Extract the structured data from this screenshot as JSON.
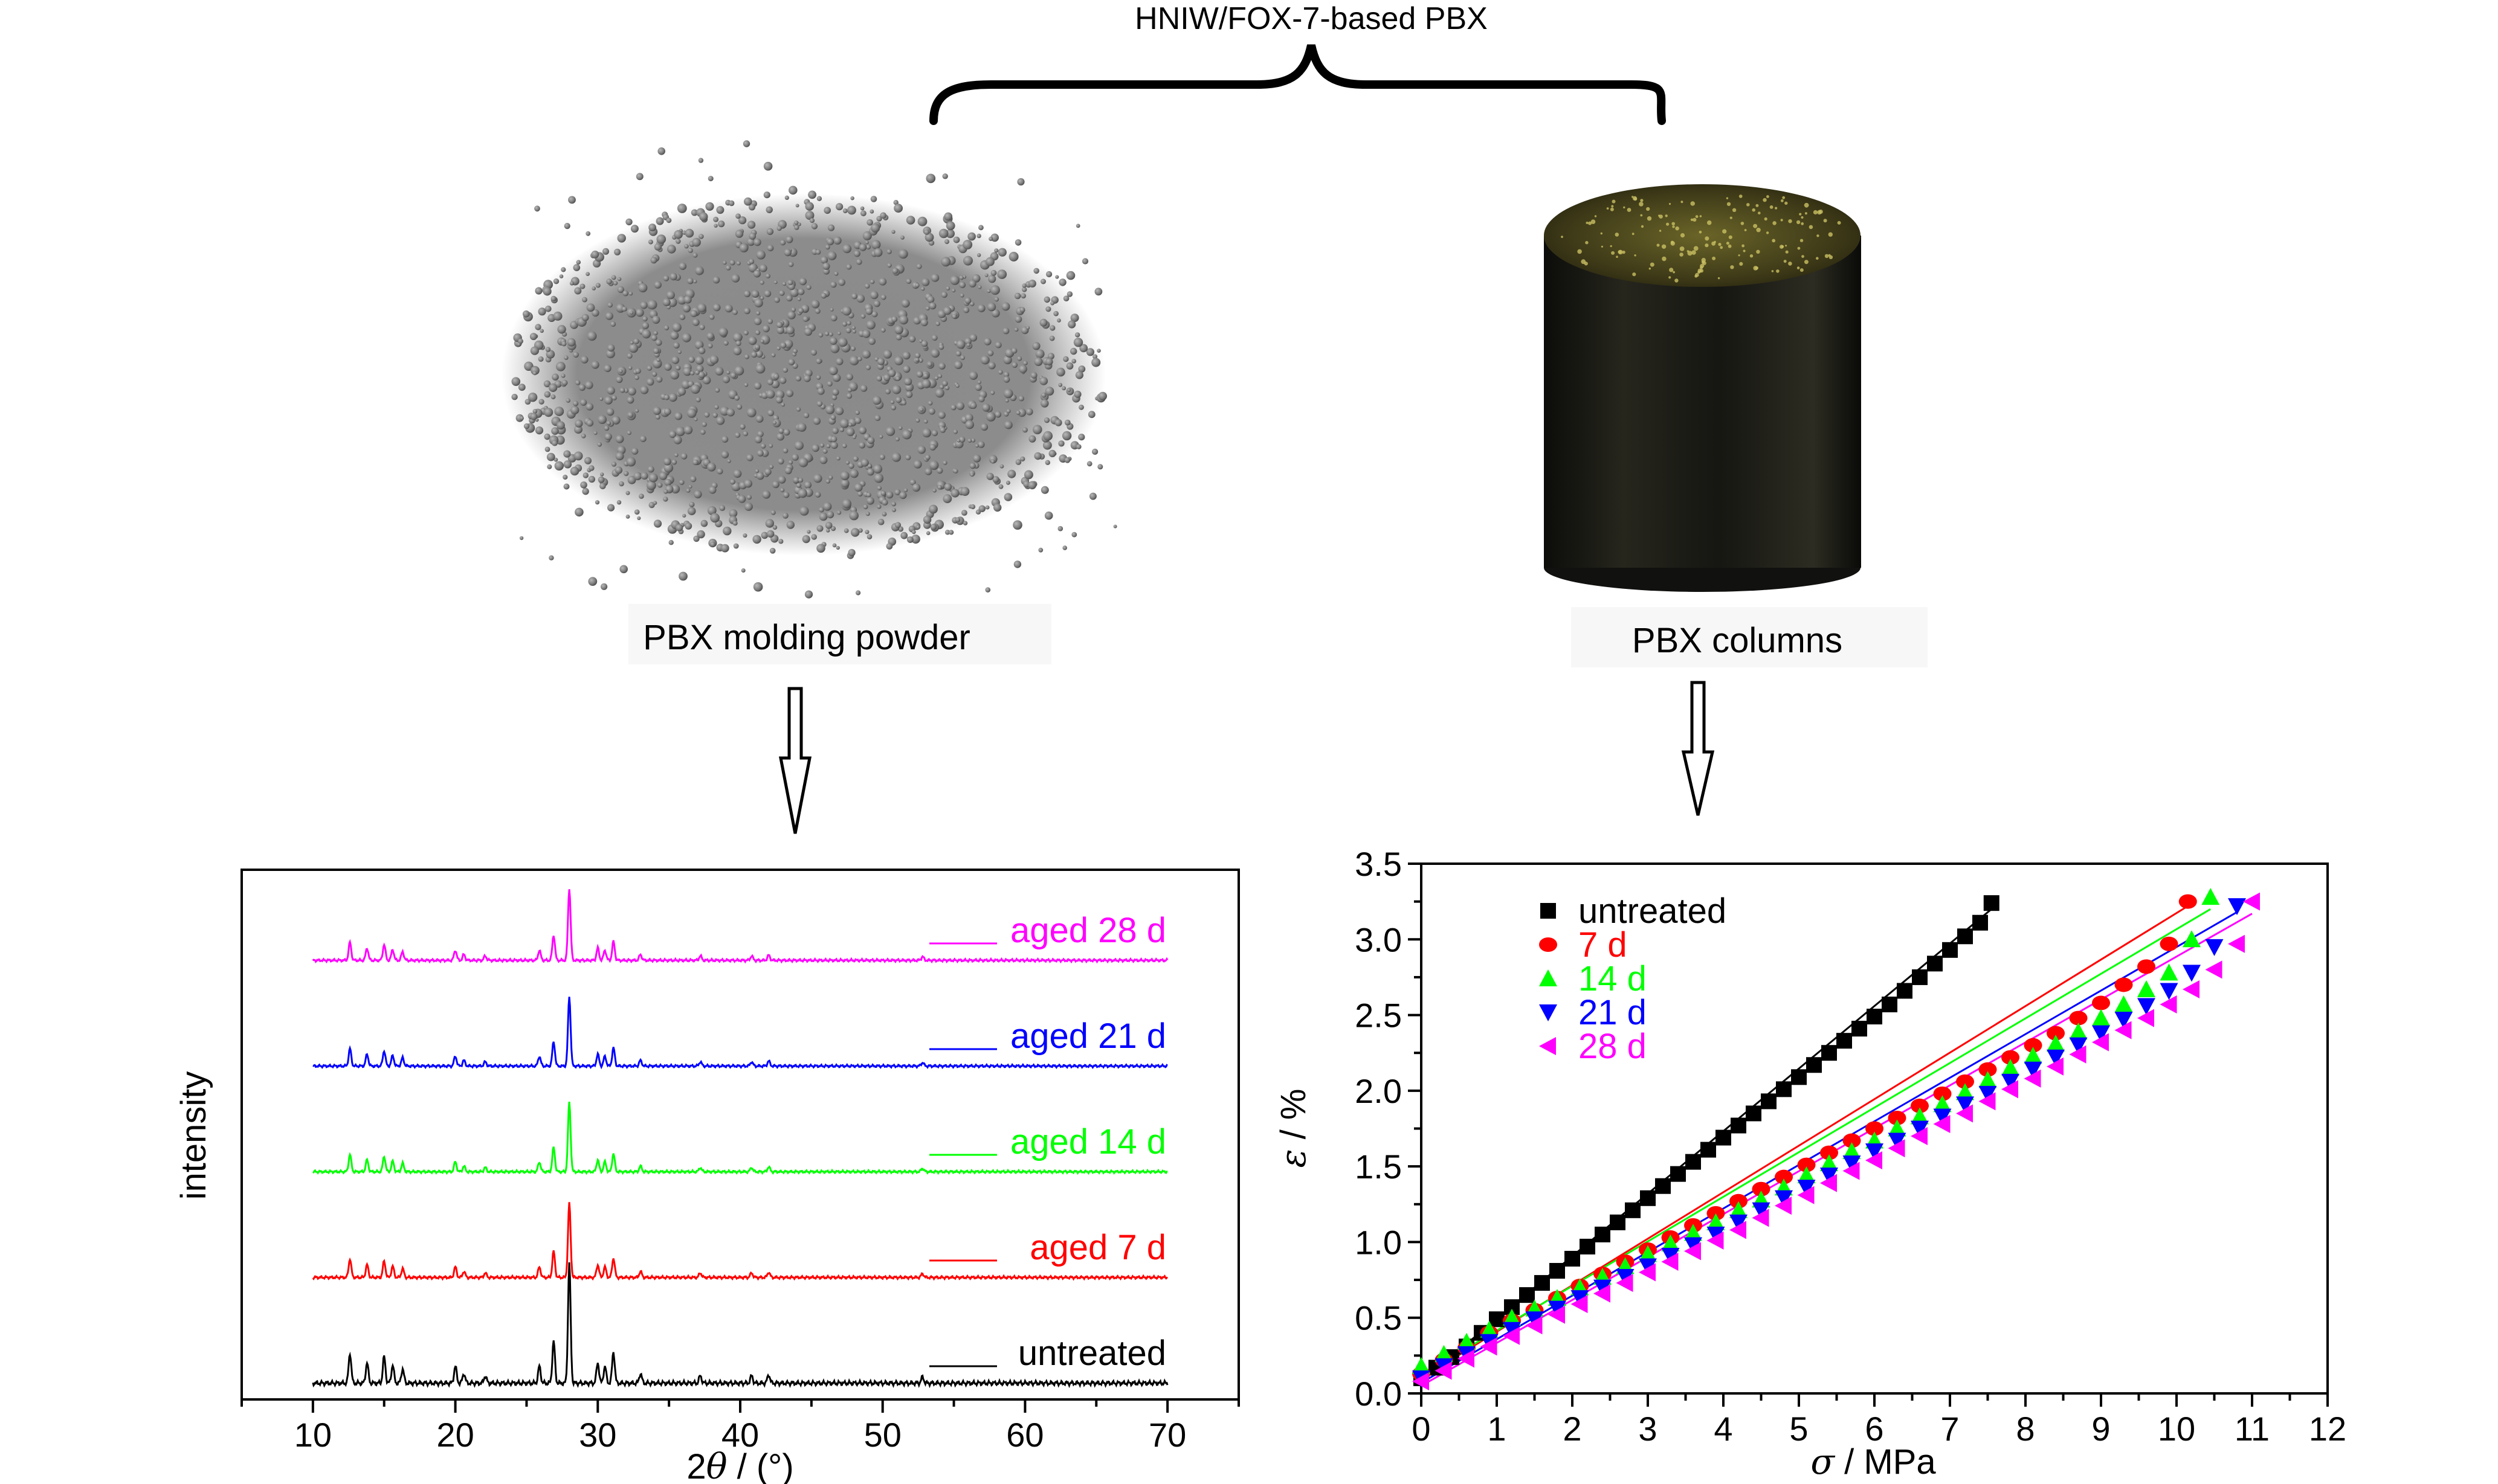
{
  "header": {
    "title": "HNIW/FOX-7-based PBX"
  },
  "photos": {
    "powder_caption": "PBX molding powder",
    "column_caption": "PBX columns"
  },
  "chart_data": [
    {
      "type": "line",
      "xlabel": "2θ / (°)",
      "xlabel_parts": [
        "2",
        "θ",
        " / (°)"
      ],
      "ylabel": "intensity",
      "xlim": [
        5,
        75
      ],
      "x_ticks": [
        "10",
        "20",
        "30",
        "40",
        "50",
        "60",
        "70"
      ],
      "x_tick_values": [
        10,
        20,
        30,
        40,
        50,
        60,
        70
      ],
      "grid": false,
      "legend_position": "inline-right",
      "peaks_2theta": [
        12.6,
        13.8,
        15.0,
        15.6,
        16.3,
        20.0,
        20.6,
        22.1,
        25.9,
        26.9,
        28.0,
        30.0,
        30.5,
        31.1,
        33.0,
        37.2,
        40.8,
        42.0,
        52.8
      ],
      "peak_relative_intensity": [
        0.25,
        0.17,
        0.22,
        0.15,
        0.12,
        0.14,
        0.08,
        0.06,
        0.14,
        0.35,
        1.0,
        0.17,
        0.14,
        0.26,
        0.08,
        0.06,
        0.06,
        0.07,
        0.05
      ],
      "series": [
        {
          "name": "untreated",
          "color": "#000000",
          "peak_scale": 1.0
        },
        {
          "name": "aged 7 d",
          "color": "#ff0000",
          "peak_scale": 0.62
        },
        {
          "name": "aged 14 d",
          "color": "#00ff00",
          "peak_scale": 0.58
        },
        {
          "name": "aged 21 d",
          "color": "#0000ff",
          "peak_scale": 0.58
        },
        {
          "name": "aged 28 d",
          "color": "#ff00ff",
          "peak_scale": 0.6
        }
      ]
    },
    {
      "type": "scatter",
      "xlabel": "σ / MPa",
      "xlabel_parts": [
        "σ",
        " / MPa"
      ],
      "ylabel": "ε / %",
      "ylabel_parts": [
        "ε",
        " / %"
      ],
      "xlim": [
        0,
        12
      ],
      "ylim": [
        0,
        3.5
      ],
      "x_ticks": [
        "0",
        "1",
        "2",
        "3",
        "4",
        "5",
        "6",
        "7",
        "8",
        "9",
        "10",
        "11",
        "12"
      ],
      "y_ticks": [
        "0.0",
        "0.5",
        "1.0",
        "1.5",
        "2.0",
        "2.5",
        "3.0",
        "3.5"
      ],
      "grid": false,
      "legend_position": "top-left",
      "series": [
        {
          "name": "untreated",
          "color": "#000000",
          "marker": "square",
          "x": [
            0.0,
            0.2,
            0.4,
            0.6,
            0.8,
            1.0,
            1.2,
            1.4,
            1.6,
            1.8,
            2.0,
            2.2,
            2.4,
            2.6,
            2.8,
            3.0,
            3.2,
            3.4,
            3.6,
            3.8,
            4.0,
            4.2,
            4.4,
            4.6,
            4.8,
            5.0,
            5.2,
            5.4,
            5.6,
            5.8,
            6.0,
            6.2,
            6.4,
            6.6,
            6.8,
            7.0,
            7.2,
            7.4,
            7.55
          ],
          "y": [
            0.1,
            0.17,
            0.24,
            0.31,
            0.4,
            0.49,
            0.57,
            0.65,
            0.73,
            0.81,
            0.89,
            0.97,
            1.05,
            1.13,
            1.21,
            1.29,
            1.37,
            1.45,
            1.53,
            1.61,
            1.69,
            1.77,
            1.85,
            1.93,
            2.01,
            2.09,
            2.17,
            2.25,
            2.33,
            2.41,
            2.49,
            2.57,
            2.66,
            2.75,
            2.84,
            2.93,
            3.02,
            3.11,
            3.24
          ]
        },
        {
          "name": "7 d",
          "color": "#ff0000",
          "marker": "circle",
          "x": [
            0.0,
            0.3,
            0.6,
            0.9,
            1.2,
            1.5,
            1.8,
            2.1,
            2.4,
            2.7,
            3.0,
            3.3,
            3.6,
            3.9,
            4.2,
            4.5,
            4.8,
            5.1,
            5.4,
            5.7,
            6.0,
            6.3,
            6.6,
            6.9,
            7.2,
            7.5,
            7.8,
            8.1,
            8.4,
            8.7,
            9.0,
            9.3,
            9.6,
            9.9,
            10.15
          ],
          "y": [
            0.13,
            0.22,
            0.3,
            0.4,
            0.48,
            0.55,
            0.63,
            0.71,
            0.79,
            0.87,
            0.95,
            1.03,
            1.11,
            1.19,
            1.27,
            1.35,
            1.43,
            1.51,
            1.59,
            1.67,
            1.75,
            1.82,
            1.9,
            1.98,
            2.06,
            2.14,
            2.22,
            2.3,
            2.38,
            2.48,
            2.58,
            2.7,
            2.82,
            2.97,
            3.25
          ]
        },
        {
          "name": "14 d",
          "color": "#00ff00",
          "marker": "triangle-up",
          "x": [
            0.0,
            0.3,
            0.6,
            0.9,
            1.2,
            1.5,
            1.8,
            2.1,
            2.4,
            2.7,
            3.0,
            3.3,
            3.6,
            3.9,
            4.2,
            4.5,
            4.8,
            5.1,
            5.4,
            5.7,
            6.0,
            6.3,
            6.6,
            6.9,
            7.2,
            7.5,
            7.8,
            8.1,
            8.4,
            8.7,
            9.0,
            9.3,
            9.6,
            9.9,
            10.2,
            10.45
          ],
          "y": [
            0.18,
            0.26,
            0.34,
            0.42,
            0.5,
            0.56,
            0.63,
            0.7,
            0.77,
            0.84,
            0.92,
            0.99,
            1.06,
            1.13,
            1.21,
            1.28,
            1.36,
            1.44,
            1.52,
            1.6,
            1.67,
            1.75,
            1.83,
            1.91,
            1.99,
            2.07,
            2.15,
            2.23,
            2.31,
            2.39,
            2.48,
            2.57,
            2.67,
            2.78,
            3.0,
            3.28
          ]
        },
        {
          "name": "21 d",
          "color": "#0000ff",
          "marker": "triangle-down",
          "x": [
            0.0,
            0.3,
            0.6,
            0.9,
            1.2,
            1.5,
            1.8,
            2.1,
            2.4,
            2.7,
            3.0,
            3.3,
            3.6,
            3.9,
            4.2,
            4.5,
            4.8,
            5.1,
            5.4,
            5.7,
            6.0,
            6.3,
            6.6,
            6.9,
            7.2,
            7.5,
            7.8,
            8.1,
            8.4,
            8.7,
            9.0,
            9.3,
            9.6,
            9.9,
            10.2,
            10.5,
            10.8
          ],
          "y": [
            0.1,
            0.18,
            0.26,
            0.34,
            0.42,
            0.49,
            0.56,
            0.63,
            0.7,
            0.77,
            0.84,
            0.91,
            0.98,
            1.05,
            1.13,
            1.21,
            1.29,
            1.36,
            1.44,
            1.52,
            1.6,
            1.67,
            1.75,
            1.83,
            1.91,
            1.98,
            2.06,
            2.14,
            2.22,
            2.3,
            2.38,
            2.47,
            2.56,
            2.66,
            2.78,
            2.95,
            3.22
          ]
        },
        {
          "name": "28 d",
          "color": "#ff00ff",
          "marker": "triangle-left",
          "x": [
            0.0,
            0.3,
            0.6,
            0.9,
            1.2,
            1.5,
            1.8,
            2.1,
            2.4,
            2.7,
            3.0,
            3.3,
            3.6,
            3.9,
            4.2,
            4.5,
            4.8,
            5.1,
            5.4,
            5.7,
            6.0,
            6.3,
            6.6,
            6.9,
            7.2,
            7.5,
            7.8,
            8.1,
            8.4,
            8.7,
            9.0,
            9.3,
            9.6,
            9.9,
            10.2,
            10.5,
            10.8,
            11.0
          ],
          "y": [
            0.08,
            0.15,
            0.23,
            0.31,
            0.38,
            0.45,
            0.52,
            0.59,
            0.66,
            0.73,
            0.8,
            0.87,
            0.94,
            1.01,
            1.08,
            1.16,
            1.24,
            1.31,
            1.39,
            1.47,
            1.54,
            1.62,
            1.7,
            1.78,
            1.85,
            1.93,
            2.01,
            2.08,
            2.16,
            2.24,
            2.32,
            2.4,
            2.48,
            2.57,
            2.67,
            2.8,
            2.97,
            3.25
          ]
        }
      ],
      "fit_lines": [
        {
          "name": "untreated",
          "color": "#000000",
          "x0": 0.0,
          "y0": 0.08,
          "x1": 7.55,
          "y1": 3.2
        },
        {
          "name": "7 d",
          "color": "#ff0000",
          "x0": 0.0,
          "y0": 0.1,
          "x1": 10.15,
          "y1": 3.22
        },
        {
          "name": "14 d",
          "color": "#00ff00",
          "x0": 0.0,
          "y0": 0.12,
          "x1": 10.45,
          "y1": 3.2
        },
        {
          "name": "21 d",
          "color": "#0000ff",
          "x0": 0.0,
          "y0": 0.07,
          "x1": 10.8,
          "y1": 3.18
        },
        {
          "name": "28 d",
          "color": "#ff00ff",
          "x0": 0.0,
          "y0": 0.05,
          "x1": 11.0,
          "y1": 3.17
        }
      ]
    }
  ]
}
